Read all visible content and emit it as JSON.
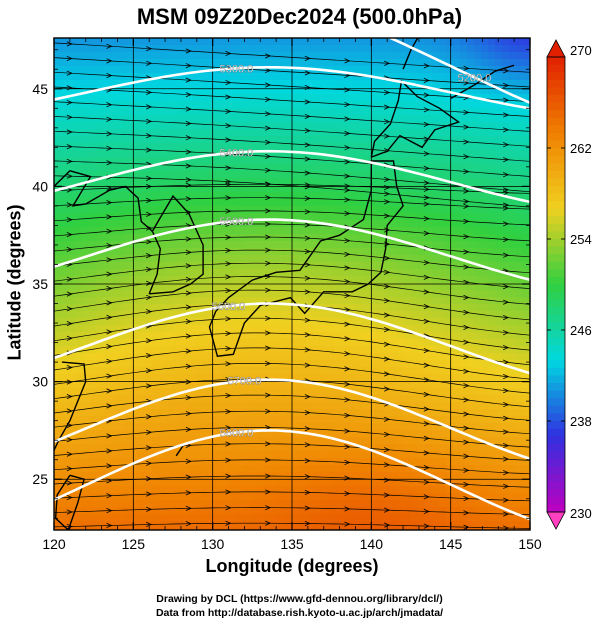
{
  "title": "MSM 09Z20Dec2024 (500.0hPa)",
  "chart_data": {
    "type": "heatmap",
    "title": "MSM 09Z20Dec2024 (500.0hPa)",
    "xlabel": "Longitude (degrees)",
    "ylabel": "Latitude  (degrees)",
    "xlim": [
      120,
      150
    ],
    "ylim": [
      22.4,
      47.6
    ],
    "x_ticks": [
      "120",
      "125",
      "130",
      "135",
      "140",
      "145",
      "150"
    ],
    "y_ticks": [
      "25",
      "30",
      "35",
      "40",
      "45"
    ],
    "colorbar": {
      "range": [
        230,
        270
      ],
      "ticks": [
        "230",
        "238",
        "246",
        "254",
        "262",
        "270"
      ],
      "colors": [
        "#c000c0",
        "#3030e0",
        "#00d8e0",
        "#30d040",
        "#f0d020",
        "#f08000",
        "#e02000"
      ]
    },
    "contour_labels": [
      "5200.0",
      "5300.0",
      "5400.0",
      "5500.0",
      "5600.0",
      "5700.0",
      "5800.0"
    ],
    "contour_color": "#ffffff",
    "streamline_color": "#000000",
    "coastline_color": "#000000"
  },
  "credits": {
    "line1": "Drawing by DCL (https://www.gfd-dennou.org/library/dcl/)",
    "line2": "Data from http://database.rish.kyoto-u.ac.jp/arch/jmadata/"
  }
}
